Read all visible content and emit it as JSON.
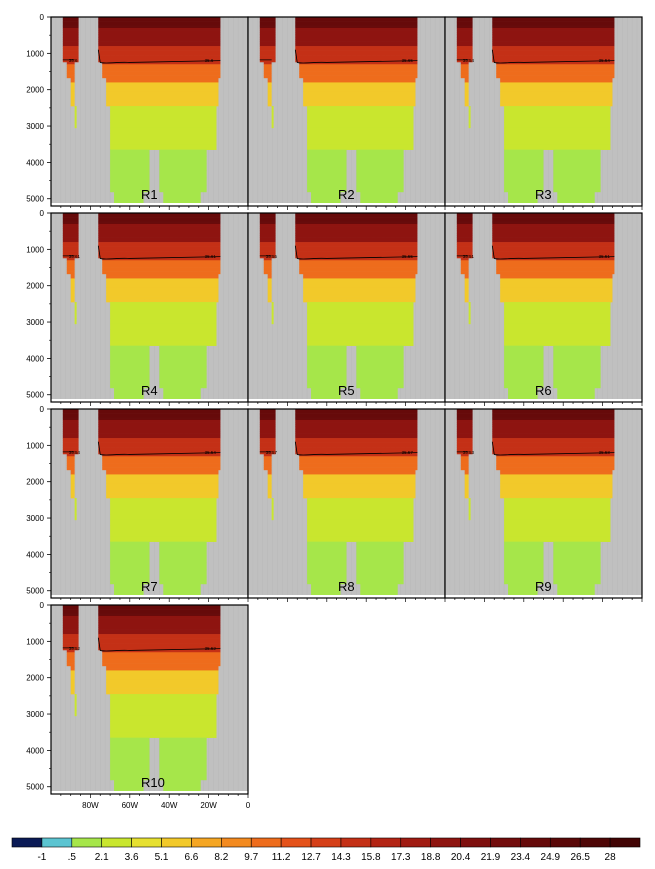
{
  "chart_data": {
    "type": "heatmap",
    "title": "",
    "xlabel": "",
    "ylabel": "",
    "ylim": [
      5200,
      0
    ],
    "y_ticks": [
      "0",
      "1000",
      "2000",
      "3000",
      "4000",
      "5000"
    ],
    "y_tick_values": [
      0,
      1000,
      2000,
      3000,
      4000,
      5000
    ],
    "x_ticks": [
      "80W",
      "60W",
      "40W",
      "20W",
      "0"
    ],
    "x_tick_values": [
      -80,
      -60,
      -40,
      -20,
      0
    ],
    "xlim": [
      -100,
      0
    ],
    "grid": false,
    "legend": "horizontal colorbar at bottom",
    "colorbar": {
      "labels": [
        "-1",
        ".5",
        "2.1",
        "3.6",
        "5.1",
        "6.6",
        "8.2",
        "9.7",
        "11.2",
        "12.7",
        "14.3",
        "15.8",
        "17.3",
        "18.8",
        "20.4",
        "21.9",
        "23.4",
        "24.9",
        "26.5",
        "28"
      ],
      "colors": [
        "#0a1a55",
        "#5bc4d1",
        "#a6e64a",
        "#c9e62e",
        "#e6e030",
        "#f2c92a",
        "#f5a623",
        "#f38a1f",
        "#ee6c1c",
        "#e4521a",
        "#d53f18",
        "#c43016",
        "#b32414",
        "#a01b12",
        "#8e1410",
        "#7e0f0e",
        "#720c0c",
        "#660a0a",
        "#5a0808",
        "#4e0606",
        "#420404"
      ]
    },
    "mask_color": "#c0c0c0",
    "panels": [
      {
        "label": "R1",
        "contour_labels": [
          "35.6",
          "35.6"
        ]
      },
      {
        "label": "R2",
        "contour_labels": [
          "",
          "35.65"
        ]
      },
      {
        "label": "R3",
        "contour_labels": [
          "35.54",
          "35.54"
        ]
      },
      {
        "label": "R4",
        "contour_labels": [
          "35.61",
          "35.61"
        ]
      },
      {
        "label": "R5",
        "contour_labels": [
          "35.55",
          "35.55"
        ]
      },
      {
        "label": "R6",
        "contour_labels": [
          "35.51",
          "35.51"
        ]
      },
      {
        "label": "R7",
        "contour_labels": [
          "35.54",
          "35.54"
        ]
      },
      {
        "label": "R8",
        "contour_labels": [
          "35.57",
          "35.57"
        ]
      },
      {
        "label": "R9",
        "contour_labels": [
          "35.53",
          "35.53"
        ]
      },
      {
        "label": "R10",
        "contour_labels": [
          "35.52",
          "35.52"
        ]
      }
    ],
    "depth_bands": [
      {
        "z_top": 0,
        "z_bottom": 300,
        "value": 23.4
      },
      {
        "z_top": 300,
        "z_bottom": 800,
        "value": 18.8
      },
      {
        "z_top": 800,
        "z_bottom": 1300,
        "value": 14.3
      },
      {
        "z_top": 1300,
        "z_bottom": 1800,
        "value": 9.7
      },
      {
        "z_top": 1800,
        "z_bottom": 2450,
        "value": 5.1
      },
      {
        "z_top": 2450,
        "z_bottom": 3650,
        "value": 2.1
      },
      {
        "z_top": 3650,
        "z_bottom": 5200,
        "value": 0.5
      }
    ]
  }
}
